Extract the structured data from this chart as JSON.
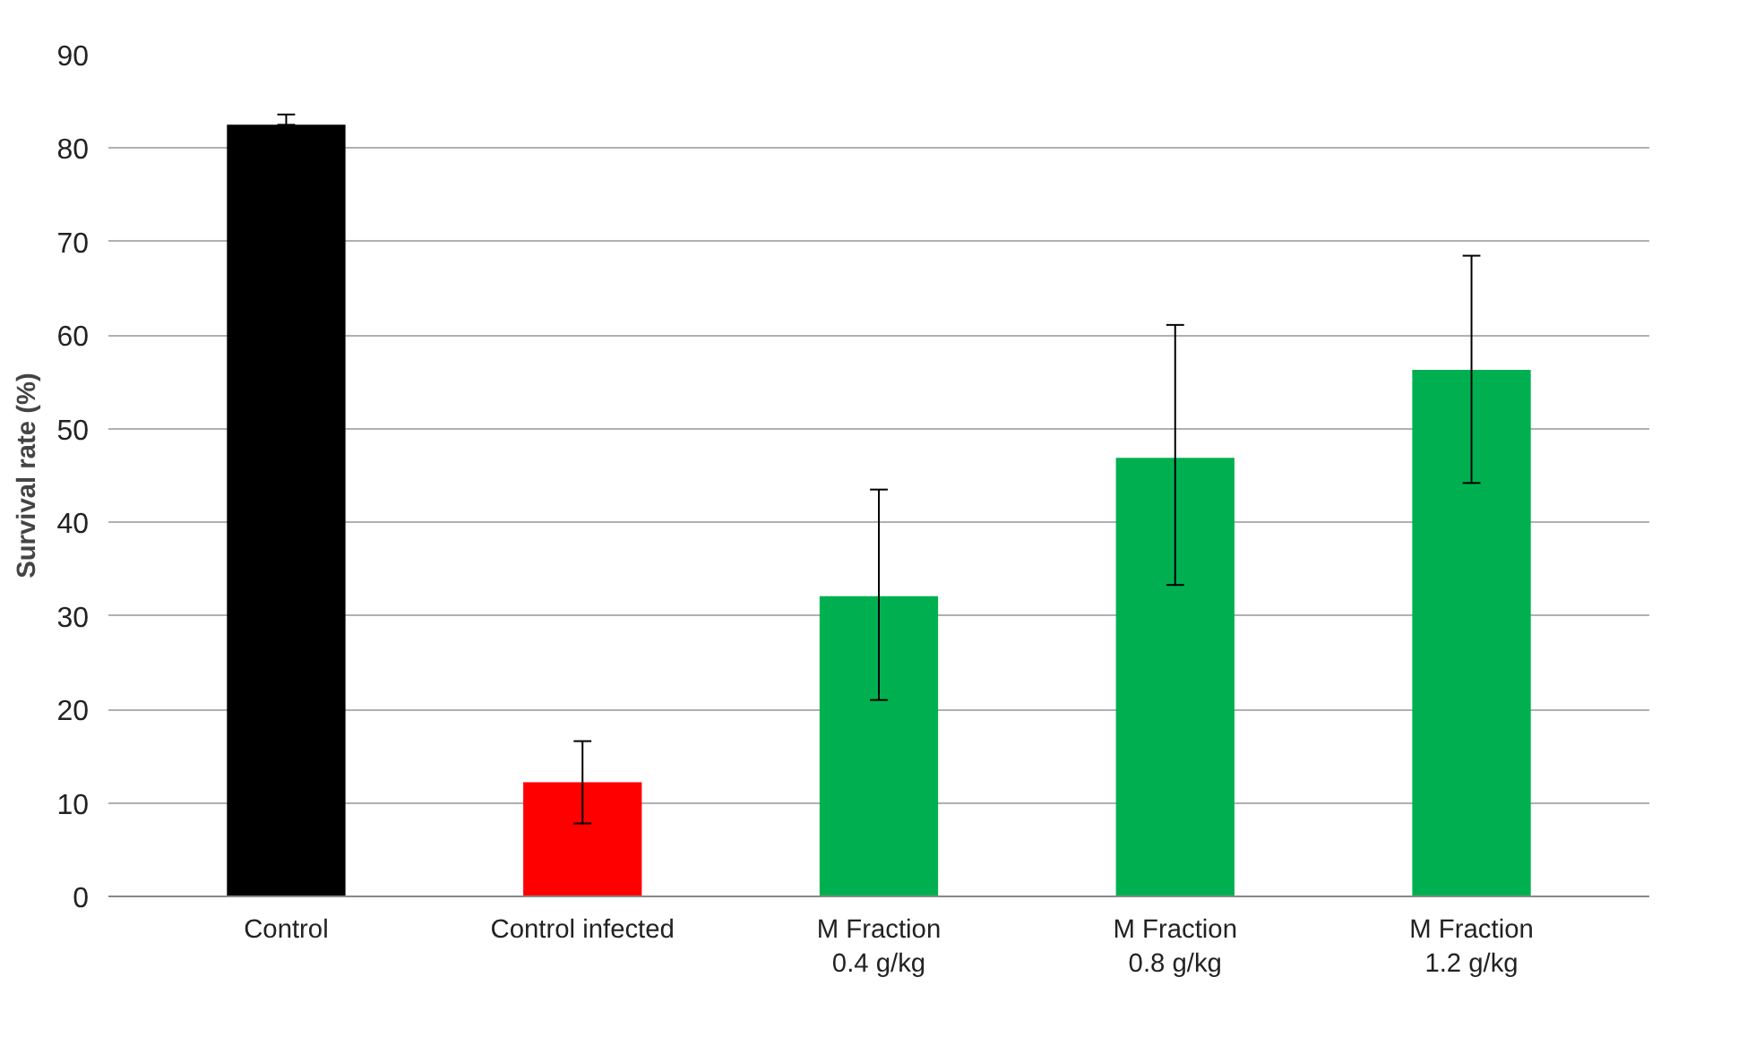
{
  "chart_data": {
    "type": "bar",
    "ylabel": "Survival rate (%)",
    "categories": [
      "Control",
      "Control infected",
      "M Fraction\n0.4 g/kg",
      "M Fraction\n0.8 g/kg",
      "M Fraction\n1.2 g/kg"
    ],
    "values": [
      82.5,
      12.2,
      32.1,
      46.9,
      56.3
    ],
    "colors": [
      "#000000",
      "#ff0000",
      "#00b050",
      "#00b050",
      "#00b050"
    ],
    "errors": [
      [
        82.5,
        83.6
      ],
      [
        7.8,
        16.6
      ],
      [
        21.0,
        43.5
      ],
      [
        33.3,
        61.1
      ],
      [
        44.2,
        68.5
      ]
    ],
    "ylim": [
      0,
      90
    ],
    "yticks": [
      0,
      10,
      20,
      30,
      40,
      50,
      60,
      70,
      80,
      90
    ],
    "grid": "y"
  }
}
